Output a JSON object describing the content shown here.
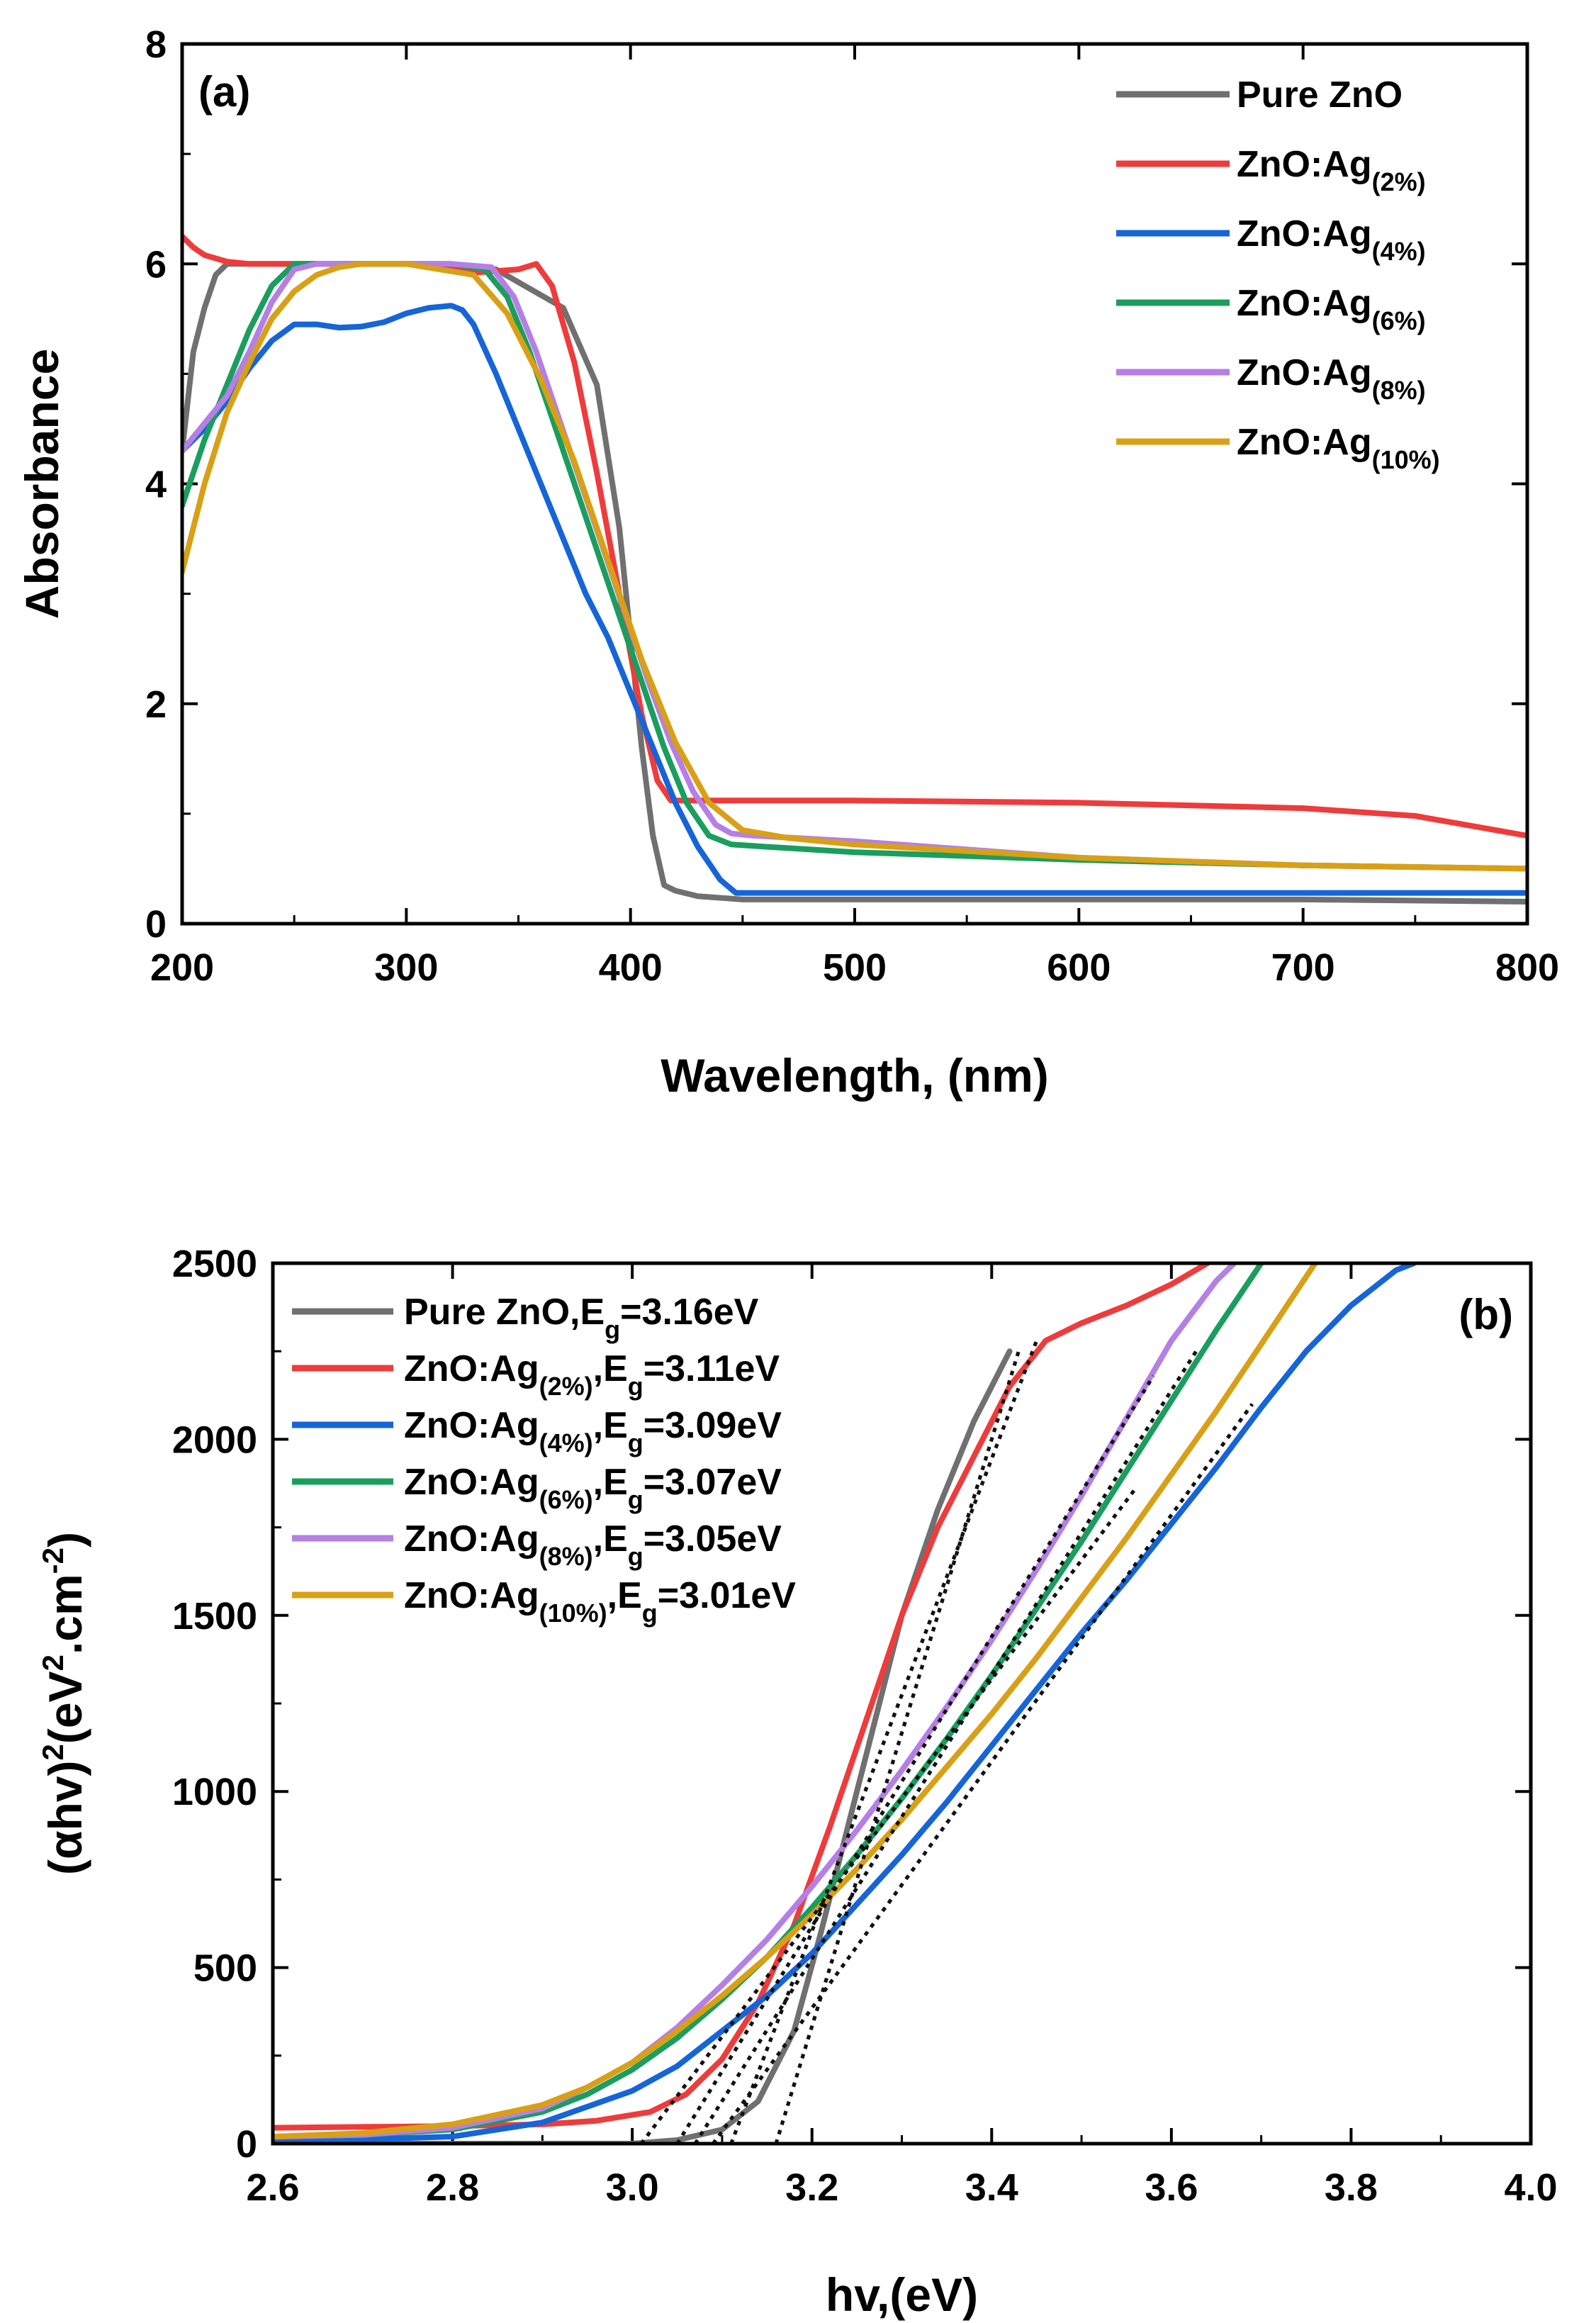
{
  "chart_data": [
    {
      "type": "line",
      "panel_label": "(a)",
      "xlabel": "Wavelength, (nm)",
      "ylabel": "Absorbance",
      "xlim": [
        200,
        800
      ],
      "ylim": [
        0,
        8
      ],
      "xticks": [
        "200",
        "300",
        "400",
        "500",
        "600",
        "700",
        "800"
      ],
      "yticks": [
        "0",
        "2",
        "4",
        "6",
        "8"
      ],
      "legend_position": "top-right",
      "series": [
        {
          "name": "Pure ZnO",
          "base": "Pure ZnO",
          "sub": "",
          "color": "#707070",
          "x": [
            200,
            205,
            210,
            215,
            220,
            225,
            230,
            260,
            300,
            340,
            370,
            385,
            395,
            400,
            405,
            410,
            415,
            420,
            430,
            450,
            500,
            600,
            700,
            800
          ],
          "y": [
            4.3,
            5.2,
            5.6,
            5.9,
            6.0,
            6.0,
            6.0,
            6.0,
            6.0,
            5.95,
            5.6,
            4.9,
            3.6,
            2.6,
            1.6,
            0.8,
            0.35,
            0.3,
            0.25,
            0.22,
            0.22,
            0.22,
            0.22,
            0.2
          ]
        },
        {
          "name": "ZnO:Ag(2%)",
          "base": "ZnO:Ag",
          "sub": "(2%)",
          "color": "#ef3b3b",
          "x": [
            200,
            205,
            210,
            220,
            230,
            260,
            300,
            330,
            350,
            358,
            365,
            375,
            385,
            395,
            405,
            412,
            418,
            430,
            450,
            500,
            600,
            700,
            750,
            800
          ],
          "y": [
            6.25,
            6.15,
            6.08,
            6.02,
            6.0,
            6.0,
            6.0,
            5.92,
            5.95,
            6.0,
            5.8,
            5.1,
            4.1,
            3.0,
            1.9,
            1.3,
            1.12,
            1.12,
            1.12,
            1.12,
            1.1,
            1.05,
            0.98,
            0.8
          ]
        },
        {
          "name": "ZnO:Ag(4%)",
          "base": "ZnO:Ag",
          "sub": "(4%)",
          "color": "#1565d8",
          "x": [
            200,
            210,
            220,
            230,
            240,
            250,
            260,
            270,
            280,
            290,
            300,
            310,
            320,
            325,
            330,
            340,
            350,
            360,
            370,
            380,
            390,
            400,
            410,
            420,
            430,
            440,
            447,
            460,
            500,
            600,
            800
          ],
          "y": [
            4.3,
            4.5,
            4.75,
            5.05,
            5.3,
            5.45,
            5.45,
            5.42,
            5.43,
            5.47,
            5.55,
            5.6,
            5.62,
            5.58,
            5.45,
            5.0,
            4.5,
            4.0,
            3.5,
            3.0,
            2.6,
            2.1,
            1.6,
            1.1,
            0.7,
            0.4,
            0.28,
            0.28,
            0.28,
            0.28,
            0.28
          ]
        },
        {
          "name": "ZnO:Ag(6%)",
          "base": "ZnO:Ag",
          "sub": "(6%)",
          "color": "#1a9e5e",
          "x": [
            200,
            210,
            220,
            230,
            240,
            250,
            260,
            300,
            320,
            335,
            345,
            355,
            365,
            375,
            385,
            395,
            405,
            415,
            425,
            435,
            445,
            460,
            500,
            600,
            700,
            800
          ],
          "y": [
            3.8,
            4.4,
            4.9,
            5.4,
            5.8,
            6.0,
            6.0,
            6.0,
            6.0,
            5.95,
            5.7,
            5.2,
            4.6,
            4.0,
            3.4,
            2.8,
            2.2,
            1.6,
            1.1,
            0.8,
            0.72,
            0.7,
            0.65,
            0.58,
            0.53,
            0.5
          ]
        },
        {
          "name": "ZnO:Ag(8%)",
          "base": "ZnO:Ag",
          "sub": "(8%)",
          "color": "#b57fe6",
          "x": [
            200,
            210,
            220,
            230,
            240,
            250,
            260,
            300,
            320,
            338,
            348,
            358,
            368,
            378,
            388,
            398,
            408,
            418,
            428,
            438,
            445,
            455,
            500,
            600,
            700,
            800
          ],
          "y": [
            4.3,
            4.55,
            4.8,
            5.2,
            5.65,
            5.95,
            6.0,
            6.0,
            6.0,
            5.97,
            5.7,
            5.2,
            4.6,
            4.0,
            3.4,
            2.8,
            2.2,
            1.65,
            1.2,
            0.9,
            0.82,
            0.8,
            0.75,
            0.6,
            0.53,
            0.5
          ]
        },
        {
          "name": "ZnO:Ag(10%)",
          "base": "ZnO:Ag",
          "sub": "(10%)",
          "color": "#d9a016",
          "x": [
            200,
            210,
            220,
            230,
            240,
            250,
            260,
            270,
            280,
            300,
            330,
            345,
            360,
            375,
            390,
            405,
            420,
            435,
            450,
            470,
            500,
            600,
            700,
            800
          ],
          "y": [
            3.2,
            4.0,
            4.65,
            5.1,
            5.5,
            5.75,
            5.9,
            5.97,
            6.0,
            6.0,
            5.9,
            5.55,
            4.95,
            4.2,
            3.3,
            2.4,
            1.65,
            1.1,
            0.85,
            0.78,
            0.72,
            0.6,
            0.53,
            0.5
          ]
        }
      ]
    },
    {
      "type": "line",
      "panel_label": "(b)",
      "xlabel": "hv,(eV)",
      "ylabel_parts": {
        "a": "(αhv)",
        "b": "2",
        "c": "(eV",
        "d": "2",
        "e": ".cm",
        "f": "-2",
        "g": ")"
      },
      "xlim": [
        2.6,
        4.0
      ],
      "ylim": [
        0,
        2500
      ],
      "xticks": [
        "2.6",
        "2.8",
        "3.0",
        "3.2",
        "3.4",
        "3.6",
        "3.8",
        "4.0"
      ],
      "yticks": [
        "0",
        "500",
        "1000",
        "1500",
        "2000",
        "2500"
      ],
      "legend_position": "top-left",
      "series": [
        {
          "name": "Pure ZnO,Eg=3.16eV",
          "base": "Pure ZnO",
          "sub": "",
          "eg_prefix": ",E",
          "eg_sub": "g",
          "eg_value": "=3.16eV",
          "color": "#707070",
          "x": [
            2.6,
            3.0,
            3.05,
            3.1,
            3.14,
            3.18,
            3.21,
            3.24,
            3.27,
            3.3,
            3.34,
            3.38,
            3.42
          ],
          "y": [
            0,
            0,
            10,
            40,
            120,
            320,
            600,
            900,
            1200,
            1500,
            1800,
            2050,
            2250
          ]
        },
        {
          "name": "ZnO:Ag(2%),Eg=3.11eV",
          "base": "ZnO:Ag",
          "sub": "(2%)",
          "eg_prefix": ",E",
          "eg_sub": "g",
          "eg_value": "=3.11eV",
          "color": "#ef3b3b",
          "x": [
            2.6,
            2.8,
            2.9,
            2.96,
            3.02,
            3.06,
            3.1,
            3.14,
            3.18,
            3.22,
            3.26,
            3.3,
            3.34,
            3.38,
            3.42,
            3.46,
            3.5,
            3.55,
            3.6,
            3.64
          ],
          "y": [
            45,
            50,
            55,
            65,
            90,
            140,
            240,
            400,
            620,
            900,
            1200,
            1500,
            1750,
            1950,
            2150,
            2280,
            2330,
            2380,
            2440,
            2500
          ]
        },
        {
          "name": "ZnO:Ag(4%),Eg=3.09eV",
          "base": "ZnO:Ag",
          "sub": "(4%)",
          "eg_prefix": ",E",
          "eg_sub": "g",
          "eg_value": "=3.09eV",
          "color": "#1565d8",
          "x": [
            2.6,
            2.7,
            2.8,
            2.9,
            3.0,
            3.05,
            3.1,
            3.15,
            3.2,
            3.25,
            3.3,
            3.35,
            3.4,
            3.45,
            3.5,
            3.55,
            3.6,
            3.65,
            3.7,
            3.75,
            3.8,
            3.85,
            3.87
          ],
          "y": [
            10,
            12,
            20,
            60,
            150,
            220,
            320,
            420,
            540,
            680,
            820,
            970,
            1130,
            1290,
            1450,
            1600,
            1760,
            1920,
            2090,
            2250,
            2380,
            2480,
            2500
          ]
        },
        {
          "name": "ZnO:Ag(6%),Eg=3.07eV",
          "base": "ZnO:Ag",
          "sub": "(6%)",
          "eg_prefix": ",E",
          "eg_sub": "g",
          "eg_value": "=3.07eV",
          "color": "#1a9e5e",
          "x": [
            2.6,
            2.7,
            2.8,
            2.9,
            2.95,
            3.0,
            3.05,
            3.1,
            3.15,
            3.2,
            3.25,
            3.3,
            3.35,
            3.4,
            3.45,
            3.5,
            3.55,
            3.6,
            3.65,
            3.7
          ],
          "y": [
            20,
            25,
            40,
            90,
            140,
            210,
            300,
            410,
            530,
            670,
            820,
            980,
            1150,
            1330,
            1520,
            1710,
            1910,
            2110,
            2310,
            2500
          ]
        },
        {
          "name": "ZnO:Ag(8%),Eg=3.05eV",
          "base": "ZnO:Ag",
          "sub": "(8%)",
          "eg_prefix": ",E",
          "eg_sub": "g",
          "eg_value": "=3.05eV",
          "color": "#b57fe6",
          "x": [
            2.6,
            2.7,
            2.8,
            2.9,
            2.95,
            3.0,
            3.05,
            3.1,
            3.15,
            3.2,
            3.25,
            3.3,
            3.35,
            3.4,
            3.45,
            3.5,
            3.55,
            3.6,
            3.65,
            3.67
          ],
          "y": [
            20,
            25,
            45,
            100,
            160,
            230,
            330,
            450,
            580,
            730,
            890,
            1060,
            1240,
            1430,
            1630,
            1840,
            2060,
            2280,
            2450,
            2500
          ]
        },
        {
          "name": "ZnO:Ag(10%),Eg=3.01eV",
          "base": "ZnO:Ag",
          "sub": "(10%)",
          "eg_prefix": ",E",
          "eg_sub": "g",
          "eg_value": "=3.01eV",
          "color": "#d9a016",
          "x": [
            2.6,
            2.7,
            2.8,
            2.9,
            2.95,
            3.0,
            3.05,
            3.1,
            3.15,
            3.2,
            3.25,
            3.3,
            3.35,
            3.4,
            3.45,
            3.5,
            3.55,
            3.6,
            3.65,
            3.7,
            3.76
          ],
          "y": [
            20,
            30,
            55,
            110,
            160,
            230,
            320,
            420,
            530,
            650,
            780,
            920,
            1070,
            1220,
            1380,
            1550,
            1720,
            1900,
            2080,
            2270,
            2500
          ]
        }
      ],
      "tangent_lines": [
        {
          "name": "tangent-pure-zno",
          "from": [
            3.16,
            0
          ],
          "to": [
            3.43,
            2250
          ]
        },
        {
          "name": "tangent-ag2",
          "from": [
            3.11,
            0
          ],
          "to": [
            3.45,
            2280
          ]
        },
        {
          "name": "tangent-ag4",
          "from": [
            3.09,
            0
          ],
          "to": [
            3.69,
            2100
          ]
        },
        {
          "name": "tangent-ag6",
          "from": [
            3.07,
            0
          ],
          "to": [
            3.63,
            2260
          ]
        },
        {
          "name": "tangent-ag8",
          "from": [
            3.05,
            0
          ],
          "to": [
            3.58,
            2180
          ]
        },
        {
          "name": "tangent-ag10",
          "from": [
            3.01,
            0
          ],
          "to": [
            3.56,
            1860
          ]
        }
      ]
    }
  ]
}
